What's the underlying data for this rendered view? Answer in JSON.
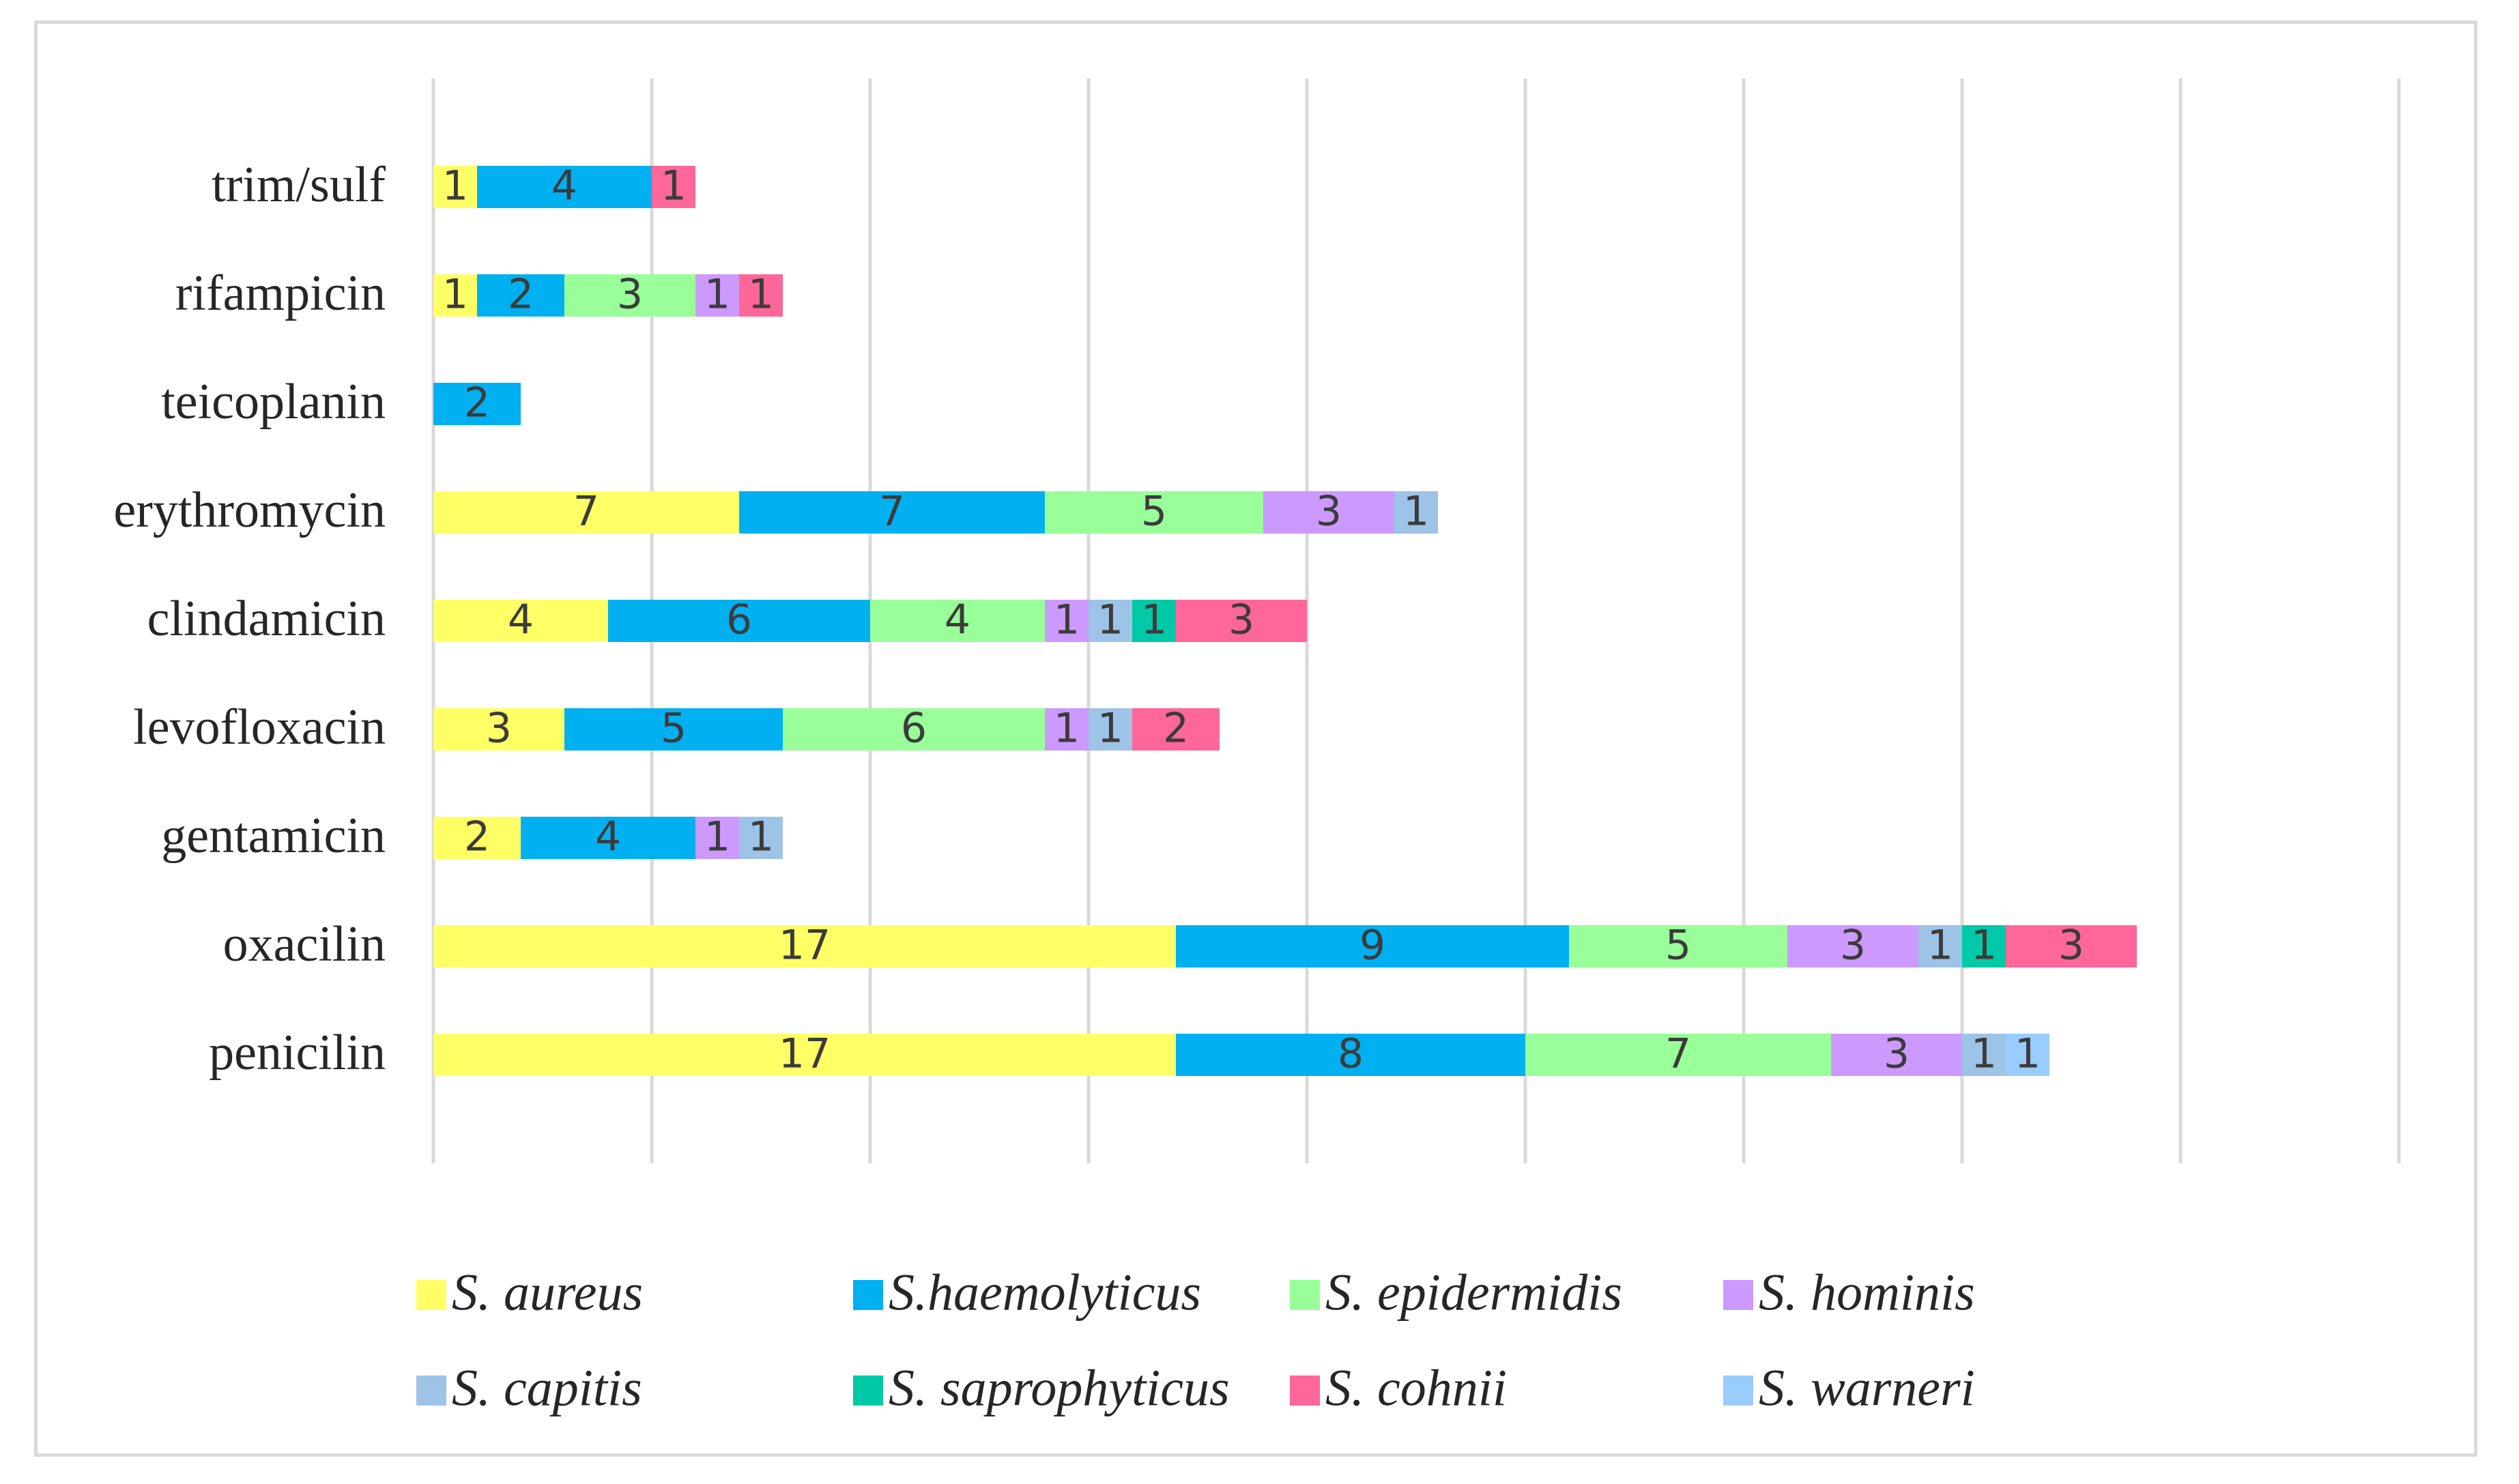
{
  "chart_data": {
    "type": "bar",
    "orientation": "horizontal",
    "stacked": true,
    "title": "",
    "xlabel": "",
    "ylabel": "",
    "xlim": [
      0,
      45
    ],
    "grid": true,
    "legend_position": "bottom",
    "categories": [
      "penicilin",
      "oxacilin",
      "gentamicin",
      "levofloxacin",
      "clindamicin",
      "erythromycin",
      "teicoplanin",
      "rifampicin",
      "trim/sulf"
    ],
    "series": [
      {
        "name": "S. aureus",
        "color": "#ffff66",
        "values": [
          17,
          17,
          2,
          3,
          4,
          7,
          0,
          1,
          1
        ]
      },
      {
        "name": "S.haemolyticus",
        "color": "#00b0f0",
        "values": [
          8,
          9,
          4,
          5,
          6,
          7,
          2,
          2,
          4
        ]
      },
      {
        "name": "S. epidermidis",
        "color": "#99ff99",
        "values": [
          7,
          5,
          0,
          6,
          4,
          5,
          0,
          3,
          0
        ]
      },
      {
        "name": "S. hominis",
        "color": "#cc99ff",
        "values": [
          3,
          3,
          1,
          1,
          1,
          3,
          0,
          1,
          0
        ]
      },
      {
        "name": "S. capitis",
        "color": "#9dc3e6",
        "values": [
          1,
          1,
          1,
          1,
          1,
          1,
          0,
          0,
          0
        ]
      },
      {
        "name": "S. saprophyticus",
        "color": "#00c9a7",
        "values": [
          0,
          1,
          0,
          0,
          1,
          0,
          0,
          0,
          0
        ]
      },
      {
        "name": "S. cohnii",
        "color": "#ff6699",
        "values": [
          0,
          3,
          0,
          2,
          3,
          0,
          0,
          1,
          1
        ]
      },
      {
        "name": "S. warneri",
        "color": "#99ccff",
        "values": [
          1,
          0,
          0,
          0,
          0,
          0,
          0,
          0,
          0
        ]
      }
    ]
  }
}
